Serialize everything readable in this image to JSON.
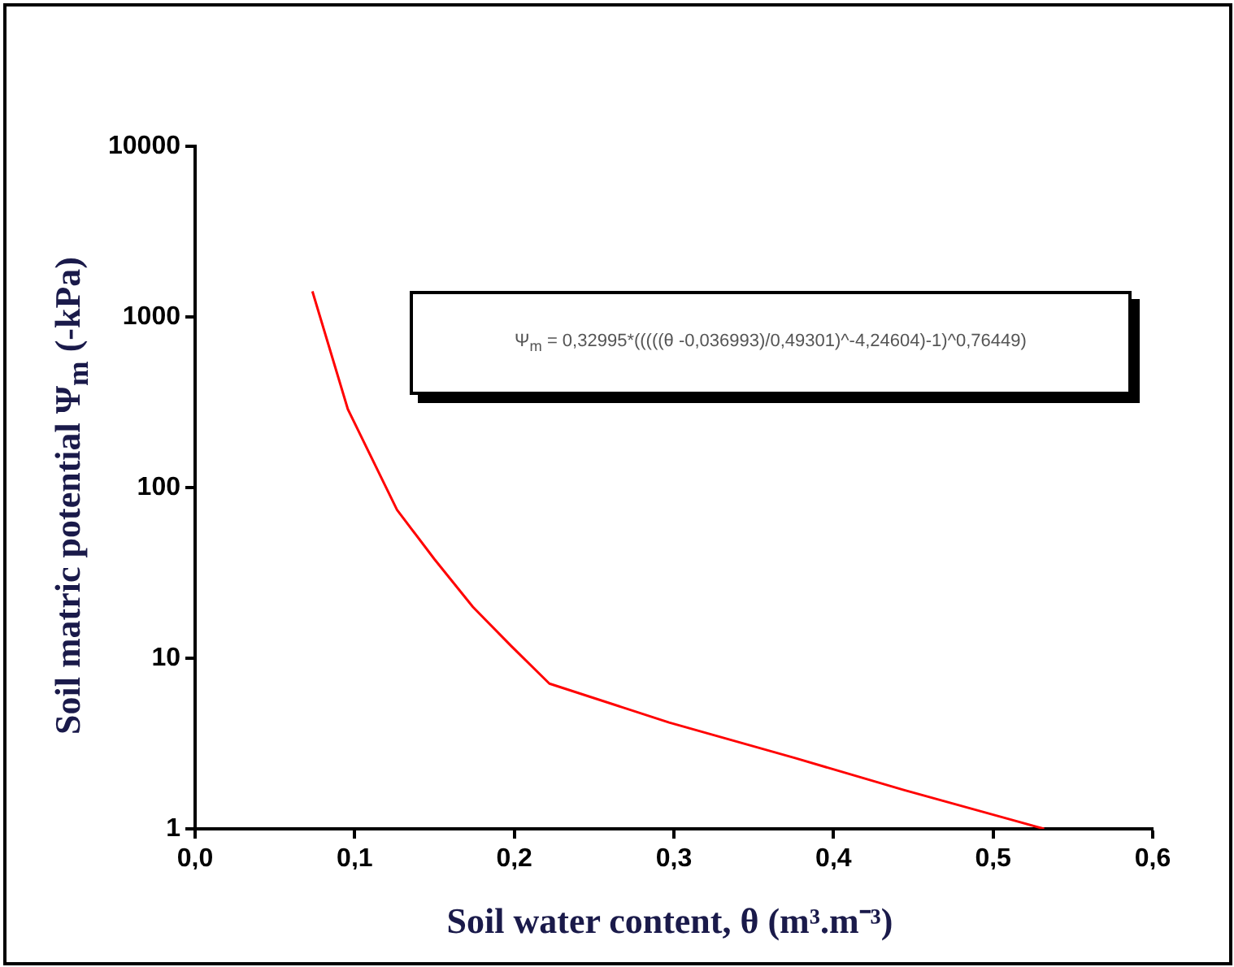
{
  "chart_data": {
    "type": "line",
    "xlabel": "Soil water content, θ (m³.m⁻³)",
    "ylabel": "Soil matric potential Ψ$_{m}$ (-kPa)",
    "annotations": [
      "Ψ$_{m}$ = 0,32995*(((((θ -0,036993)/0,49301)^-4,24604)-1)^0,76449)"
    ],
    "x": [
      0.0735,
      0.0957,
      0.1265,
      0.15,
      0.174,
      0.198,
      0.222,
      0.297,
      0.376,
      0.444,
      0.513,
      0.532
    ],
    "series": [
      {
        "color": "#ff0000",
        "values": [
          1413,
          288,
          74,
          38,
          20,
          11.8,
          7.1,
          4.2,
          2.6,
          1.69,
          1.12,
          1.0
        ]
      }
    ],
    "xlim": [
      0,
      0.6
    ],
    "xticks": [
      {
        "value": 0,
        "label": "0,0"
      },
      {
        "value": 0.1,
        "label": "0,1"
      },
      {
        "value": 0.2,
        "label": "0,2"
      },
      {
        "value": 0.3,
        "label": "0,3"
      },
      {
        "value": 0.4,
        "label": "0,4"
      },
      {
        "value": 0.5,
        "label": "0,5"
      },
      {
        "value": 0.6,
        "label": "0,6"
      }
    ],
    "ylim": [
      1,
      10000
    ],
    "yticks": [
      1,
      10,
      100,
      1000,
      10000
    ],
    "log": "y",
    "grid": false,
    "legend": false,
    "marker": "none",
    "line_style": "solid"
  }
}
